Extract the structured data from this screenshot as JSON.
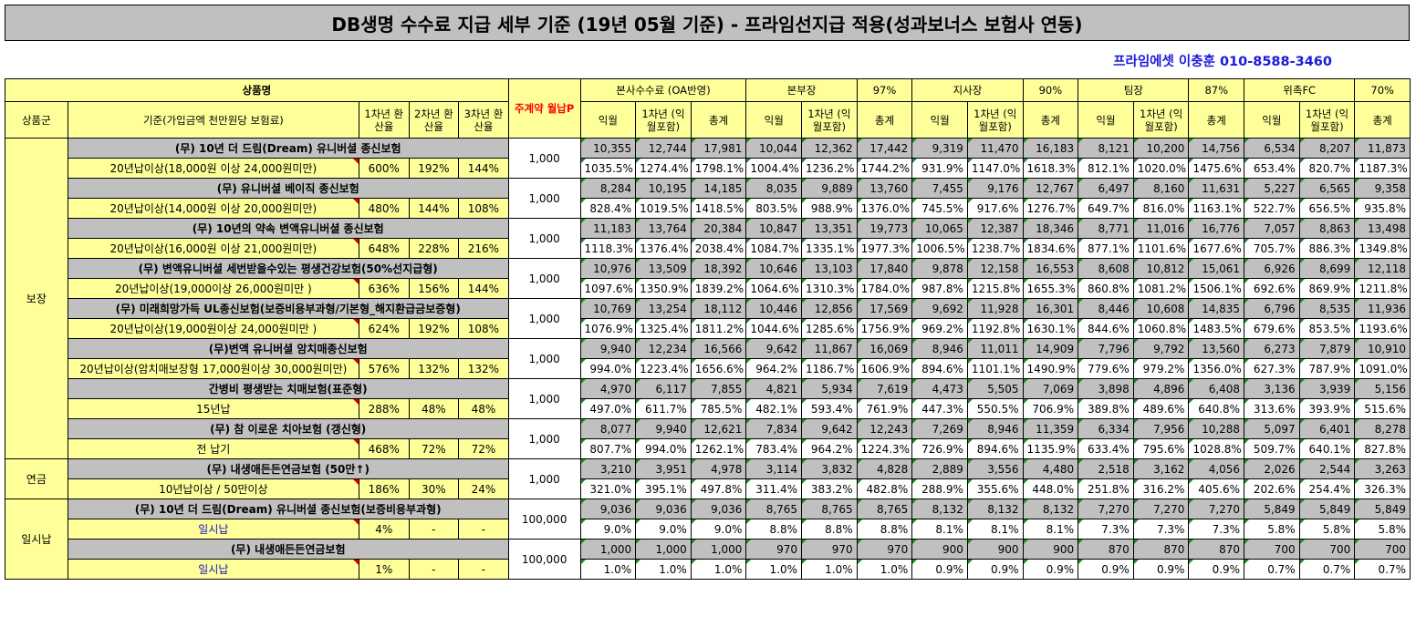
{
  "title": "DB생명 수수료 지급 세부 기준 (19년 05월 기준) - 프라임선지급 적용(성과보너스 보험사 연동)",
  "contact": "프라임에셋 이충훈 010-8588-3460",
  "header": {
    "product_name": "상품명",
    "category": "상품군",
    "basis": "기준(가입금액 천만원당 보험료)",
    "yr1": "1차년 환산율",
    "yr2": "2차년 환산율",
    "yr3": "3차년 환산율",
    "premium": "주계약 월납P",
    "groups": [
      {
        "name": "본사수수료 (OA반영)",
        "pct": ""
      },
      {
        "name": "본부장",
        "pct": "97%"
      },
      {
        "name": "지사장",
        "pct": "90%"
      },
      {
        "name": "팀장",
        "pct": "87%"
      },
      {
        "name": "위촉FC",
        "pct": "70%"
      }
    ],
    "sub_ik": "익월",
    "sub_y1": "1차년 (익월포함)",
    "sub_total": "총계"
  },
  "categories": [
    {
      "label": "보장"
    },
    {
      "label": "연금"
    },
    {
      "label": "일시납"
    }
  ],
  "products": [
    {
      "name": "(무) 10년 더 드림(Dream) 유니버셜 종신보험",
      "condition": "20년납이상(18,000원 이상 24,000원미만)",
      "r1": "600%",
      "r2": "192%",
      "r3": "144%",
      "premium": "1,000",
      "amounts": [
        "10,355",
        "12,744",
        "17,981",
        "10,044",
        "12,362",
        "17,442",
        "9,319",
        "11,470",
        "16,183",
        "8,121",
        "10,200",
        "14,756",
        "6,534",
        "8,207",
        "11,873"
      ],
      "rates": [
        "1035.5%",
        "1274.4%",
        "1798.1%",
        "1004.4%",
        "1236.2%",
        "1744.2%",
        "931.9%",
        "1147.0%",
        "1618.3%",
        "812.1%",
        "1020.0%",
        "1475.6%",
        "653.4%",
        "820.7%",
        "1187.3%"
      ]
    },
    {
      "name": "(무) 유니버셜 베이직 종신보험",
      "condition": "20년납이상(14,000원 이상 20,000원미만)",
      "r1": "480%",
      "r2": "144%",
      "r3": "108%",
      "premium": "1,000",
      "amounts": [
        "8,284",
        "10,195",
        "14,185",
        "8,035",
        "9,889",
        "13,760",
        "7,455",
        "9,176",
        "12,767",
        "6,497",
        "8,160",
        "11,631",
        "5,227",
        "6,565",
        "9,358"
      ],
      "rates": [
        "828.4%",
        "1019.5%",
        "1418.5%",
        "803.5%",
        "988.9%",
        "1376.0%",
        "745.5%",
        "917.6%",
        "1276.7%",
        "649.7%",
        "816.0%",
        "1163.1%",
        "522.7%",
        "656.5%",
        "935.8%"
      ]
    },
    {
      "name": "(무) 10년의 약속 변액유니버셜 종신보험",
      "condition": "20년납이상(16,000원 이상 21,000원미만)",
      "r1": "648%",
      "r2": "228%",
      "r3": "216%",
      "premium": "1,000",
      "amounts": [
        "11,183",
        "13,764",
        "20,384",
        "10,847",
        "13,351",
        "19,773",
        "10,065",
        "12,387",
        "18,346",
        "8,771",
        "11,016",
        "16,776",
        "7,057",
        "8,863",
        "13,498"
      ],
      "rates": [
        "1118.3%",
        "1376.4%",
        "2038.4%",
        "1084.7%",
        "1335.1%",
        "1977.3%",
        "1006.5%",
        "1238.7%",
        "1834.6%",
        "877.1%",
        "1101.6%",
        "1677.6%",
        "705.7%",
        "886.3%",
        "1349.8%"
      ]
    },
    {
      "name": "(무) 변액유니버셜 세번받을수있는 평생건강보험(50%선지급형)",
      "condition": "20년납이상(19,000이상 26,000원미만 )",
      "r1": "636%",
      "r2": "156%",
      "r3": "144%",
      "premium": "1,000",
      "amounts": [
        "10,976",
        "13,509",
        "18,392",
        "10,646",
        "13,103",
        "17,840",
        "9,878",
        "12,158",
        "16,553",
        "8,608",
        "10,812",
        "15,061",
        "6,926",
        "8,699",
        "12,118"
      ],
      "rates": [
        "1097.6%",
        "1350.9%",
        "1839.2%",
        "1064.6%",
        "1310.3%",
        "1784.0%",
        "987.8%",
        "1215.8%",
        "1655.3%",
        "860.8%",
        "1081.2%",
        "1506.1%",
        "692.6%",
        "869.9%",
        "1211.8%"
      ]
    },
    {
      "name": "(무) 미래희망가득 UL종신보험(보증비용부과형/기본형_해지환급금보증형)",
      "condition": "20년납이상(19,000원이상 24,000원미만 )",
      "r1": "624%",
      "r2": "192%",
      "r3": "108%",
      "premium": "1,000",
      "amounts": [
        "10,769",
        "13,254",
        "18,112",
        "10,446",
        "12,856",
        "17,569",
        "9,692",
        "11,928",
        "16,301",
        "8,446",
        "10,608",
        "14,835",
        "6,796",
        "8,535",
        "11,936"
      ],
      "rates": [
        "1076.9%",
        "1325.4%",
        "1811.2%",
        "1044.6%",
        "1285.6%",
        "1756.9%",
        "969.2%",
        "1192.8%",
        "1630.1%",
        "844.6%",
        "1060.8%",
        "1483.5%",
        "679.6%",
        "853.5%",
        "1193.6%"
      ]
    },
    {
      "name": "(무)변액 유니버셜 암치매종신보험",
      "condition": "20년납이상(암치매보장형 17,000원이상 30,000원미만)",
      "r1": "576%",
      "r2": "132%",
      "r3": "132%",
      "premium": "1,000",
      "amounts": [
        "9,940",
        "12,234",
        "16,566",
        "9,642",
        "11,867",
        "16,069",
        "8,946",
        "11,011",
        "14,909",
        "7,796",
        "9,792",
        "13,560",
        "6,273",
        "7,879",
        "10,910"
      ],
      "rates": [
        "994.0%",
        "1223.4%",
        "1656.6%",
        "964.2%",
        "1186.7%",
        "1606.9%",
        "894.6%",
        "1101.1%",
        "1490.9%",
        "779.6%",
        "979.2%",
        "1356.0%",
        "627.3%",
        "787.9%",
        "1091.0%"
      ]
    },
    {
      "name": "간병비 평생받는 치매보험(표준형)",
      "condition": "15년납",
      "r1": "288%",
      "r2": "48%",
      "r3": "48%",
      "premium": "1,000",
      "amounts": [
        "4,970",
        "6,117",
        "7,855",
        "4,821",
        "5,934",
        "7,619",
        "4,473",
        "5,505",
        "7,069",
        "3,898",
        "4,896",
        "6,408",
        "3,136",
        "3,939",
        "5,156"
      ],
      "rates": [
        "497.0%",
        "611.7%",
        "785.5%",
        "482.1%",
        "593.4%",
        "761.9%",
        "447.3%",
        "550.5%",
        "706.9%",
        "389.8%",
        "489.6%",
        "640.8%",
        "313.6%",
        "393.9%",
        "515.6%"
      ]
    },
    {
      "name": "(무) 참 이로운 치아보험 (갱신형)",
      "condition": "전 납기",
      "r1": "468%",
      "r2": "72%",
      "r3": "72%",
      "premium": "1,000",
      "amounts": [
        "8,077",
        "9,940",
        "12,621",
        "7,834",
        "9,642",
        "12,243",
        "7,269",
        "8,946",
        "11,359",
        "6,334",
        "7,956",
        "10,288",
        "5,097",
        "6,401",
        "8,278"
      ],
      "rates": [
        "807.7%",
        "994.0%",
        "1262.1%",
        "783.4%",
        "964.2%",
        "1224.3%",
        "726.9%",
        "894.6%",
        "1135.9%",
        "633.4%",
        "795.6%",
        "1028.8%",
        "509.7%",
        "640.1%",
        "827.8%"
      ]
    },
    {
      "name": "(무) 내생애든든연금보험 (50만↑)",
      "condition": "10년납이상 / 50만이상",
      "r1": "186%",
      "r2": "30%",
      "r3": "24%",
      "premium": "1,000",
      "amounts": [
        "3,210",
        "3,951",
        "4,978",
        "3,114",
        "3,832",
        "4,828",
        "2,889",
        "3,556",
        "4,480",
        "2,518",
        "3,162",
        "4,056",
        "2,026",
        "2,544",
        "3,263"
      ],
      "rates": [
        "321.0%",
        "395.1%",
        "497.8%",
        "311.4%",
        "383.2%",
        "482.8%",
        "288.9%",
        "355.6%",
        "448.0%",
        "251.8%",
        "316.2%",
        "405.6%",
        "202.6%",
        "254.4%",
        "326.3%"
      ]
    },
    {
      "name": "(무) 10년 더 드림(Dream) 유니버셜 종신보험(보증비용부과형)",
      "condition": "일시납",
      "r1": "4%",
      "r2": "-",
      "r3": "-",
      "premium": "100,000",
      "amounts": [
        "9,036",
        "9,036",
        "9,036",
        "8,765",
        "8,765",
        "8,765",
        "8,132",
        "8,132",
        "8,132",
        "7,270",
        "7,270",
        "7,270",
        "5,849",
        "5,849",
        "5,849"
      ],
      "rates": [
        "9.0%",
        "9.0%",
        "9.0%",
        "8.8%",
        "8.8%",
        "8.8%",
        "8.1%",
        "8.1%",
        "8.1%",
        "7.3%",
        "7.3%",
        "7.3%",
        "5.8%",
        "5.8%",
        "5.8%"
      ]
    },
    {
      "name": "(무) 내생애든든연금보험",
      "condition": "일시납",
      "r1": "1%",
      "r2": "-",
      "r3": "-",
      "premium": "100,000",
      "amounts": [
        "1,000",
        "1,000",
        "1,000",
        "970",
        "970",
        "970",
        "900",
        "900",
        "900",
        "870",
        "870",
        "870",
        "700",
        "700",
        "700"
      ],
      "rates": [
        "1.0%",
        "1.0%",
        "1.0%",
        "1.0%",
        "1.0%",
        "1.0%",
        "0.9%",
        "0.9%",
        "0.9%",
        "0.9%",
        "0.9%",
        "0.9%",
        "0.7%",
        "0.7%",
        "0.7%"
      ]
    }
  ]
}
